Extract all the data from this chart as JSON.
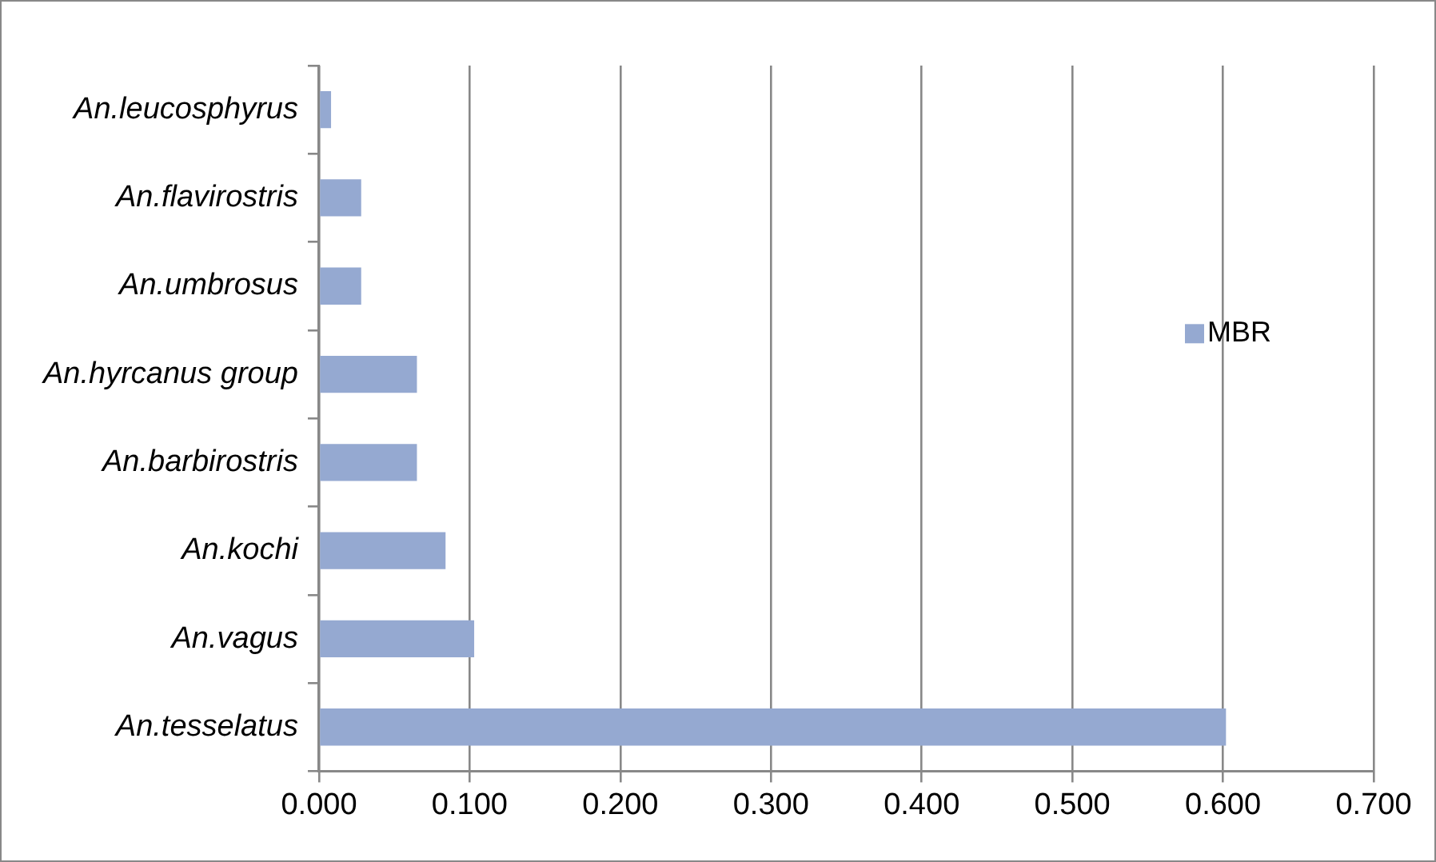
{
  "chart_data": {
    "type": "bar",
    "orientation": "horizontal",
    "categories": [
      "An.leucosphyrus",
      "An.flavirostris",
      "An.umbrosus",
      "An.hyrcanus group",
      "An.barbirostris",
      "An.kochi",
      "An.vagus",
      "An.tesselatus"
    ],
    "series": [
      {
        "name": "MBR",
        "color": "#95a9d1",
        "values": [
          0.008,
          0.028,
          0.028,
          0.065,
          0.065,
          0.084,
          0.103,
          0.602
        ]
      }
    ],
    "xlim": [
      0,
      0.7
    ],
    "xticks": [
      {
        "value": 0,
        "label": "0.000"
      },
      {
        "value": 0.1,
        "label": "0.100"
      },
      {
        "value": 0.2,
        "label": "0.200"
      },
      {
        "value": 0.3,
        "label": "0.300"
      },
      {
        "value": 0.4,
        "label": "0.400"
      },
      {
        "value": 0.5,
        "label": "0.500"
      },
      {
        "value": 0.6,
        "label": "0.600"
      },
      {
        "value": 0.7,
        "label": "0.700"
      }
    ],
    "grid": "x",
    "legend": "right"
  }
}
